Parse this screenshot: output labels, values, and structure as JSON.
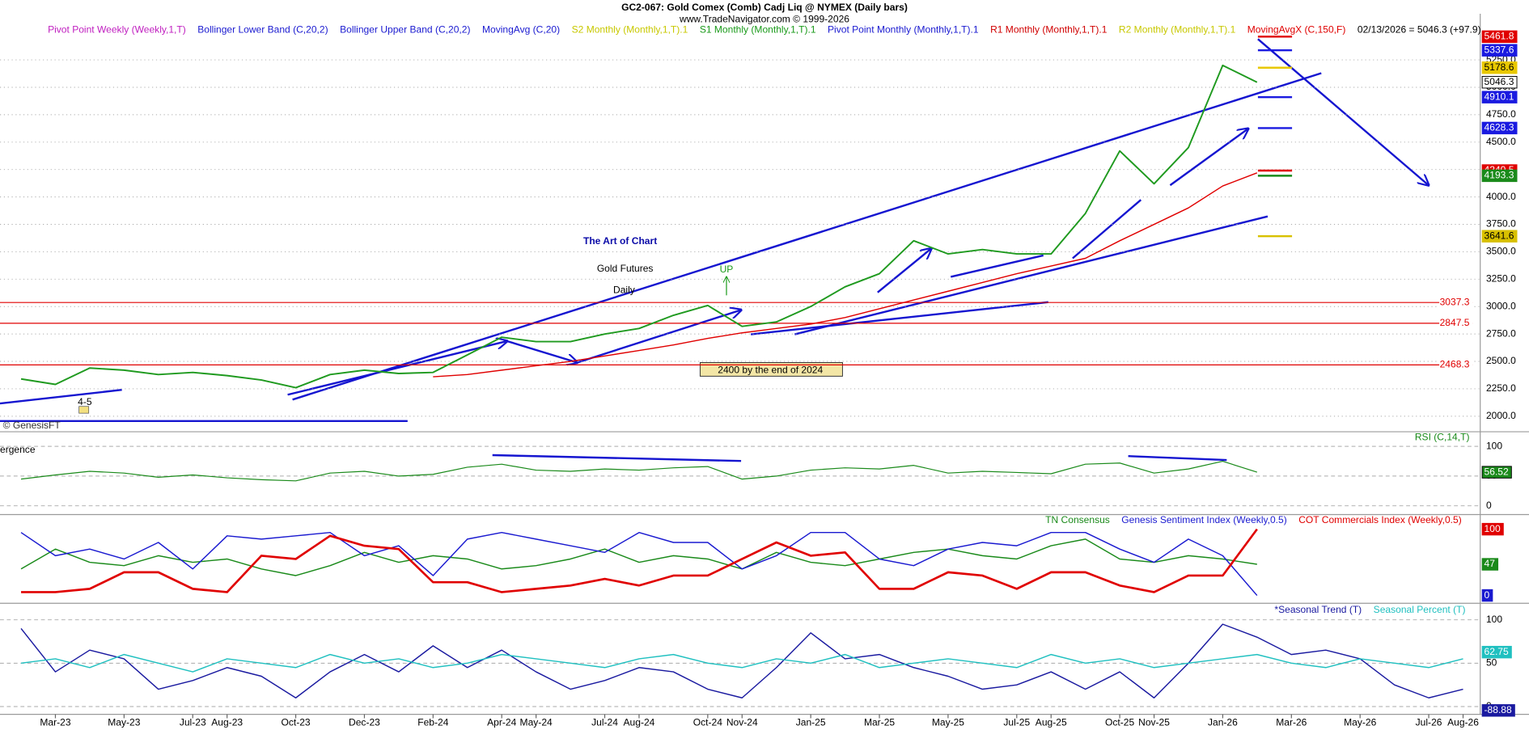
{
  "header": {
    "title": "GC2-067:  Gold Comex (Comb) Cadj Liq @ NYMEX  (Daily bars)",
    "subtitle": "www.TradeNavigator.com © 1999-2026"
  },
  "annotations": {
    "headline": "The Art of Chart",
    "product": "Gold Futures",
    "interval": "Daily",
    "signal": "UP",
    "forecast": "2400 by the end of 2024",
    "wave": "4-5",
    "source": "© GenesisFT",
    "fragment": "ergence"
  },
  "chart_data": [
    {
      "type": "line",
      "categories": [
        null,
        "Mar-23",
        null,
        "May-23",
        null,
        "Jul-23",
        "Aug-23",
        null,
        "Oct-23",
        null,
        "Dec-23",
        null,
        "Feb-24",
        null,
        "Apr-24",
        "May-24",
        null,
        "Jul-24",
        "Aug-24",
        null,
        "Oct-24",
        "Nov-24",
        null,
        "Jan-25",
        null,
        "Mar-25",
        null,
        "May-25",
        null,
        "Jul-25",
        "Aug-25",
        null,
        "Oct-25",
        "Nov-25",
        null,
        "Jan-26",
        null,
        "Mar-26",
        null,
        "May-26",
        null,
        "Jul-26",
        "Aug-26"
      ],
      "values": [
        2340,
        2290,
        2440,
        2420,
        2380,
        2400,
        2370,
        2330,
        2260,
        2380,
        2420,
        2390,
        2400,
        2560,
        2720,
        2680,
        2680,
        2750,
        2800,
        2920,
        3010,
        2820,
        2860,
        3000,
        3180,
        3300,
        3600,
        3480,
        3520,
        3480,
        3480,
        3850,
        4420,
        4120,
        4450,
        5200,
        5046.3,
        null,
        null,
        null,
        null,
        null,
        null
      ],
      "color": "#1f9a1f",
      "series": [
        {
          "name": "MovingAvgX (C,150,F)",
          "color": "#e00000",
          "values": [
            null,
            null,
            null,
            null,
            null,
            null,
            null,
            null,
            null,
            null,
            null,
            null,
            2360,
            2380,
            2420,
            2460,
            2500,
            2550,
            2600,
            2650,
            2710,
            2760,
            2800,
            2840,
            2900,
            2980,
            3060,
            3140,
            3220,
            3300,
            3370,
            3440,
            3600,
            3750,
            3900,
            4100,
            4220,
            null,
            null,
            null,
            null,
            null,
            null
          ]
        }
      ],
      "legend": [
        {
          "name": "Pivot Point Weekly (Weekly,1,T)",
          "color": "#c020c0"
        },
        {
          "name": "Bollinger Lower Band (C,20,2)",
          "color": "#1a1ad0"
        },
        {
          "name": "Bollinger Upper Band (C,20,2)",
          "color": "#1a1ad0"
        },
        {
          "name": "MovingAvg (C,20)",
          "color": "#1a1ad0"
        },
        {
          "name": "S2 Monthly (Monthly,1,T).1",
          "color": "#c8c800"
        },
        {
          "name": "S1 Monthly (Monthly,1,T).1",
          "color": "#1a9a1a"
        },
        {
          "name": "Pivot Point Monthly (Monthly,1,T).1",
          "color": "#1a1ad0"
        },
        {
          "name": "R1 Monthly (Monthly,1,T).1",
          "color": "#d00000"
        },
        {
          "name": "R2 Monthly (Monthly,1,T).1",
          "color": "#c8c800"
        }
      ],
      "status": "02/13/2026 = 5046.3 (+97.9)",
      "ylim": [
        1885,
        5600
      ],
      "yticks": [
        {
          "value": 2000,
          "label": "2000.0"
        },
        {
          "value": 2250,
          "label": "2250.0"
        },
        {
          "value": 2500,
          "label": "2500.0"
        },
        {
          "value": 2750,
          "label": "2750.0"
        },
        {
          "value": 3000,
          "label": "3000.0"
        },
        {
          "value": 3250,
          "label": "3250.0"
        },
        {
          "value": 3500,
          "label": "3500.0"
        },
        {
          "value": 3750,
          "label": "3750.0"
        },
        {
          "value": 4000,
          "label": "4000.0"
        },
        {
          "value": 4250,
          "label": "4250.0"
        },
        {
          "value": 4500,
          "label": "4500.0"
        },
        {
          "value": 4750,
          "label": "4750.0"
        },
        {
          "value": 5000,
          "label": "5000.0"
        },
        {
          "value": 5250,
          "label": "5250.0"
        }
      ],
      "grid": true,
      "levels": [
        3037.3,
        2847.5,
        2468.3
      ],
      "level_color": "#e00000",
      "tags": [
        {
          "value": 5178.6,
          "color": "#e8c800"
        },
        {
          "value": 5461.8,
          "color": "#e00000"
        },
        {
          "value": 5337.6,
          "color": "#1a1ae0"
        },
        {
          "value": 4910.1,
          "color": "#1a1ae0"
        },
        {
          "value": 4628.3,
          "color": "#1a1ae0"
        },
        {
          "value": 4240.5,
          "color": "#e00000"
        },
        {
          "value": 4193.3,
          "color": "#1a8a1a"
        },
        {
          "value": 3641.6,
          "color": "#d8c000"
        }
      ]
    },
    {
      "type": "line",
      "title": "RSI (C,14,T)",
      "color": "#1a8a1a",
      "values": [
        45,
        52,
        58,
        55,
        48,
        52,
        47,
        44,
        42,
        55,
        58,
        50,
        53,
        65,
        70,
        60,
        58,
        62,
        60,
        64,
        66,
        45,
        50,
        60,
        64,
        62,
        68,
        55,
        58,
        56,
        54,
        70,
        72,
        55,
        62,
        75,
        56.52,
        null,
        null,
        null,
        null,
        null,
        null
      ],
      "ylim": [
        0,
        100
      ],
      "yticks": [
        0,
        50,
        100
      ]
    },
    {
      "type": "line",
      "series": [
        {
          "name": "TN Consensus",
          "color": "#1a8a1a",
          "values": [
            40,
            70,
            50,
            45,
            60,
            50,
            55,
            40,
            30,
            45,
            65,
            50,
            60,
            55,
            40,
            45,
            55,
            70,
            50,
            60,
            55,
            40,
            65,
            50,
            45,
            55,
            65,
            70,
            60,
            55,
            75,
            85,
            55,
            50,
            60,
            55,
            47,
            null,
            null,
            null,
            null,
            null,
            null
          ]
        },
        {
          "name": "Genesis Sentiment Index (Weekly,0.5)",
          "color": "#1a1ad0",
          "values": [
            95,
            60,
            70,
            55,
            80,
            40,
            90,
            85,
            90,
            95,
            60,
            75,
            30,
            85,
            95,
            85,
            75,
            65,
            95,
            80,
            80,
            40,
            60,
            95,
            95,
            55,
            45,
            70,
            80,
            75,
            95,
            95,
            70,
            50,
            85,
            60,
            0,
            null,
            null,
            null,
            null,
            null,
            null
          ]
        },
        {
          "name": "COT Commercials Index (Weekly,0.5)",
          "color": "#e00000",
          "values": [
            5,
            5,
            10,
            35,
            35,
            10,
            5,
            60,
            55,
            90,
            75,
            70,
            20,
            20,
            5,
            10,
            15,
            25,
            15,
            30,
            30,
            55,
            80,
            60,
            65,
            10,
            10,
            35,
            30,
            10,
            35,
            35,
            15,
            5,
            30,
            30,
            100,
            null,
            null,
            null,
            null,
            null,
            null
          ]
        }
      ],
      "ylim": [
        0,
        100
      ]
    },
    {
      "type": "line",
      "series": [
        {
          "name": "*Seasonal Trend (T)",
          "color": "#1a1aa0",
          "values": [
            90,
            40,
            65,
            55,
            20,
            30,
            45,
            35,
            10,
            40,
            60,
            40,
            70,
            45,
            65,
            40,
            20,
            30,
            45,
            40,
            20,
            10,
            45,
            85,
            55,
            60,
            45,
            35,
            20,
            25,
            40,
            20,
            40,
            10,
            50,
            95,
            80,
            60,
            65,
            55,
            25,
            10,
            20
          ]
        },
        {
          "name": "Seasonal Percent (T)",
          "color": "#20c0c0",
          "values": [
            50,
            55,
            45,
            60,
            50,
            40,
            55,
            50,
            45,
            60,
            50,
            55,
            45,
            50,
            60,
            55,
            50,
            45,
            55,
            60,
            50,
            45,
            55,
            50,
            60,
            45,
            50,
            55,
            50,
            45,
            60,
            50,
            55,
            45,
            50,
            55,
            60,
            50,
            45,
            55,
            50,
            45,
            55
          ]
        }
      ],
      "ylim": [
        0,
        100
      ],
      "yticks": [
        0,
        50,
        100
      ],
      "tags": [
        {
          "value": 62.75,
          "color": "#20c0c0"
        },
        {
          "value": -88.88,
          "color": "#1a1aa0"
        }
      ]
    }
  ]
}
